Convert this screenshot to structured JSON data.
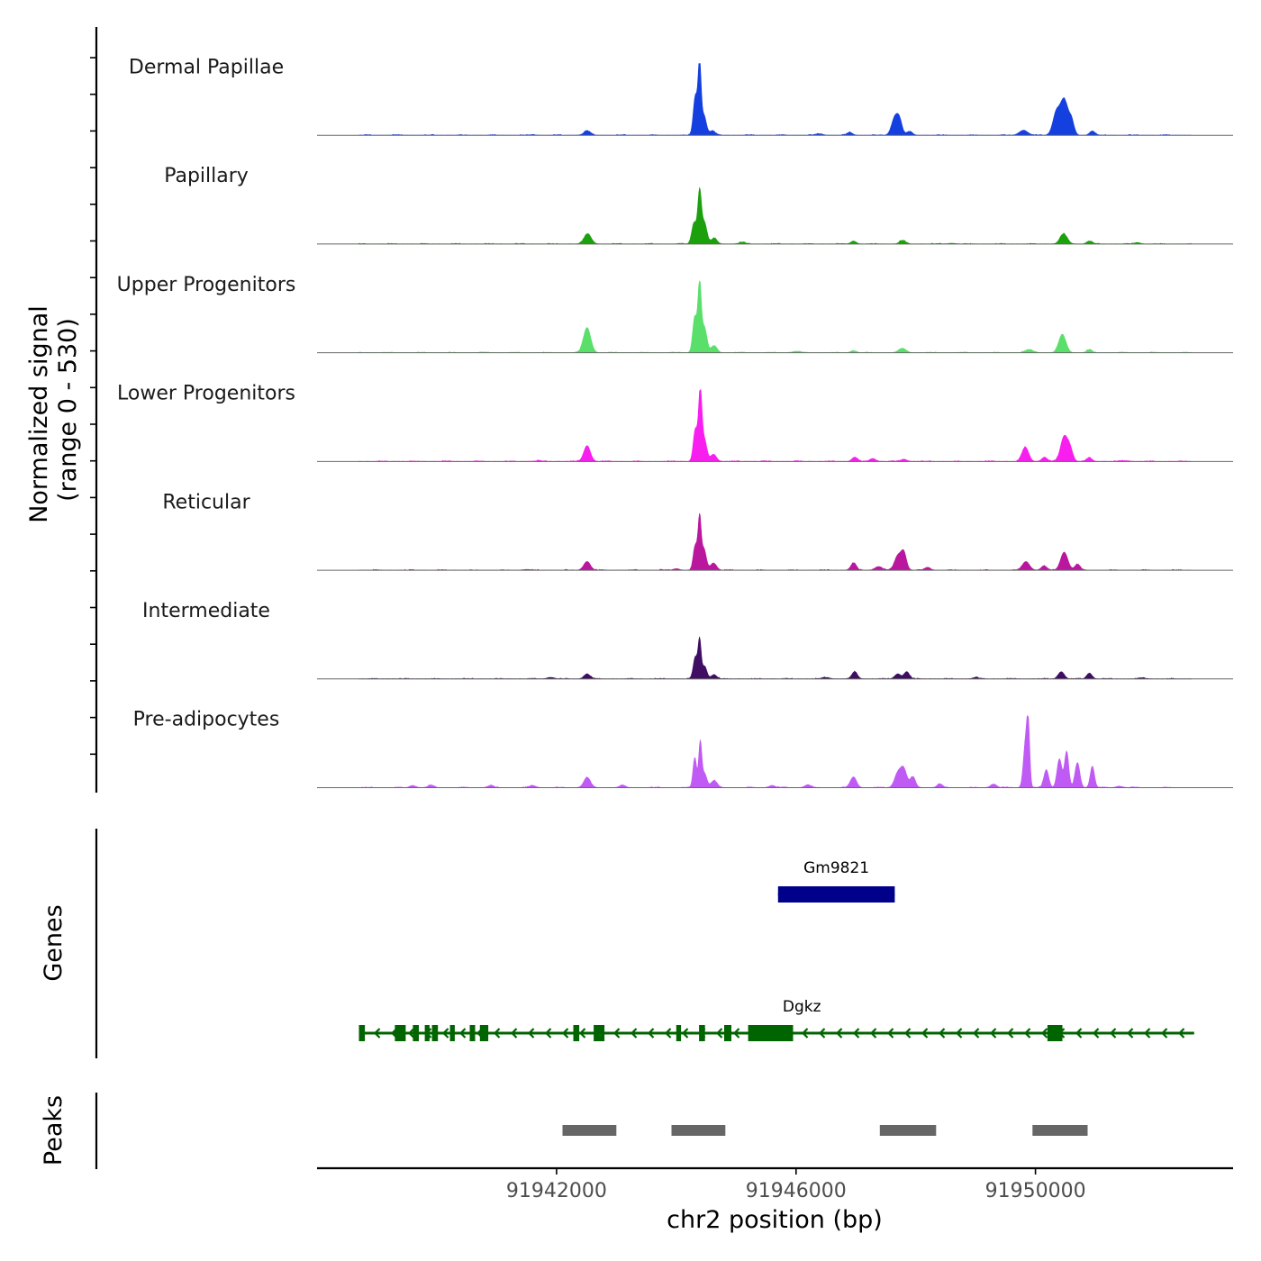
{
  "chart_data": {
    "type": "area",
    "title": "",
    "ylabel_line1": "Normalized signal",
    "ylabel_line2": "(range 0 - 530)",
    "ylim": [
      0,
      530
    ],
    "xlabel": "chr2 position (bp)",
    "xlim": [
      91938000,
      91953300
    ],
    "x_ticks": [
      {
        "value": 91942000,
        "label": "91942000"
      },
      {
        "value": 91946000,
        "label": "91946000"
      },
      {
        "value": 91950000,
        "label": "91950000"
      }
    ],
    "tracks": [
      {
        "name": "Dermal Papillae",
        "color": "#1540e0",
        "peaks": [
          [
            91942510,
            0.06,
            55
          ],
          [
            91944320,
            0.55,
            35
          ],
          [
            91944390,
            0.95,
            25
          ],
          [
            91944460,
            0.28,
            40
          ],
          [
            91944600,
            0.06,
            50
          ],
          [
            91947650,
            0.24,
            55
          ],
          [
            91947730,
            0.18,
            45
          ],
          [
            91947900,
            0.05,
            45
          ],
          [
            91949800,
            0.07,
            70
          ],
          [
            91950350,
            0.32,
            60
          ],
          [
            91950480,
            0.48,
            60
          ],
          [
            91950600,
            0.2,
            45
          ],
          [
            91950950,
            0.06,
            45
          ],
          [
            91941600,
            0.01,
            40
          ],
          [
            91946900,
            0.04,
            45
          ],
          [
            91946400,
            0.02,
            50
          ]
        ]
      },
      {
        "name": "Papillary",
        "color": "#1ca00e",
        "peaks": [
          [
            91942520,
            0.14,
            60
          ],
          [
            91944300,
            0.3,
            40
          ],
          [
            91944390,
            0.72,
            30
          ],
          [
            91944470,
            0.3,
            40
          ],
          [
            91944630,
            0.08,
            50
          ],
          [
            91946960,
            0.04,
            45
          ],
          [
            91947780,
            0.05,
            50
          ],
          [
            91950470,
            0.14,
            60
          ],
          [
            91950900,
            0.04,
            45
          ],
          [
            91945100,
            0.02,
            60
          ],
          [
            91948600,
            0.01,
            60
          ],
          [
            91951700,
            0.02,
            50
          ]
        ]
      },
      {
        "name": "Upper Progenitors",
        "color": "#59df6a",
        "peaks": [
          [
            91942510,
            0.35,
            60
          ],
          [
            91944310,
            0.5,
            35
          ],
          [
            91944390,
            0.95,
            28
          ],
          [
            91944470,
            0.35,
            40
          ],
          [
            91944630,
            0.1,
            50
          ],
          [
            91947780,
            0.06,
            60
          ],
          [
            91949900,
            0.04,
            70
          ],
          [
            91950450,
            0.25,
            60
          ],
          [
            91950900,
            0.04,
            45
          ],
          [
            91946960,
            0.03,
            45
          ],
          [
            91946000,
            0.02,
            60
          ]
        ]
      },
      {
        "name": "Lower Progenitors",
        "color": "#f81ef0",
        "peaks": [
          [
            91942510,
            0.22,
            55
          ],
          [
            91944320,
            0.45,
            35
          ],
          [
            91944400,
            0.95,
            28
          ],
          [
            91944470,
            0.3,
            40
          ],
          [
            91944620,
            0.1,
            50
          ],
          [
            91946980,
            0.06,
            45
          ],
          [
            91947280,
            0.04,
            50
          ],
          [
            91947800,
            0.03,
            50
          ],
          [
            91949830,
            0.2,
            55
          ],
          [
            91950150,
            0.06,
            45
          ],
          [
            91950480,
            0.35,
            60
          ],
          [
            91950580,
            0.15,
            45
          ],
          [
            91950900,
            0.05,
            45
          ],
          [
            91941700,
            0.01,
            60
          ],
          [
            91951500,
            0.01,
            60
          ]
        ]
      },
      {
        "name": "Reticular",
        "color": "#b9189e",
        "peaks": [
          [
            91942510,
            0.12,
            55
          ],
          [
            91944320,
            0.35,
            35
          ],
          [
            91944390,
            0.68,
            25
          ],
          [
            91944460,
            0.3,
            40
          ],
          [
            91944620,
            0.1,
            50
          ],
          [
            91946960,
            0.1,
            45
          ],
          [
            91947380,
            0.05,
            60
          ],
          [
            91947700,
            0.2,
            55
          ],
          [
            91947800,
            0.24,
            45
          ],
          [
            91948200,
            0.04,
            45
          ],
          [
            91949840,
            0.12,
            60
          ],
          [
            91950140,
            0.06,
            45
          ],
          [
            91950480,
            0.25,
            60
          ],
          [
            91950700,
            0.08,
            45
          ],
          [
            91941500,
            0.01,
            60
          ],
          [
            91944000,
            0.02,
            50
          ]
        ]
      },
      {
        "name": "Intermediate",
        "color": "#3f0d62",
        "peaks": [
          [
            91942510,
            0.07,
            50
          ],
          [
            91944320,
            0.3,
            35
          ],
          [
            91944390,
            0.52,
            25
          ],
          [
            91944470,
            0.18,
            40
          ],
          [
            91944630,
            0.06,
            45
          ],
          [
            91946980,
            0.1,
            45
          ],
          [
            91947700,
            0.07,
            50
          ],
          [
            91947850,
            0.1,
            45
          ],
          [
            91949000,
            0.02,
            50
          ],
          [
            91950430,
            0.1,
            50
          ],
          [
            91950900,
            0.08,
            45
          ],
          [
            91941900,
            0.02,
            60
          ],
          [
            91946500,
            0.02,
            60
          ],
          [
            91951800,
            0.01,
            60
          ]
        ]
      },
      {
        "name": "Pre-adipocytes",
        "color": "#c05af4",
        "peaks": [
          [
            91942510,
            0.14,
            55
          ],
          [
            91944310,
            0.42,
            30
          ],
          [
            91944400,
            0.62,
            25
          ],
          [
            91944470,
            0.2,
            40
          ],
          [
            91944630,
            0.1,
            50
          ],
          [
            91946960,
            0.15,
            50
          ],
          [
            91947700,
            0.2,
            55
          ],
          [
            91947800,
            0.25,
            50
          ],
          [
            91947950,
            0.15,
            45
          ],
          [
            91948400,
            0.05,
            45
          ],
          [
            91949830,
            0.6,
            35
          ],
          [
            91949880,
            0.8,
            25
          ],
          [
            91950180,
            0.25,
            40
          ],
          [
            91950400,
            0.4,
            40
          ],
          [
            91950520,
            0.5,
            35
          ],
          [
            91950700,
            0.35,
            40
          ],
          [
            91950950,
            0.3,
            35
          ],
          [
            91939600,
            0.03,
            50
          ],
          [
            91939900,
            0.03,
            50
          ],
          [
            91940900,
            0.03,
            50
          ],
          [
            91941600,
            0.03,
            50
          ],
          [
            91943100,
            0.03,
            50
          ],
          [
            91945600,
            0.03,
            50
          ],
          [
            91946200,
            0.04,
            50
          ],
          [
            91949300,
            0.05,
            50
          ],
          [
            91951400,
            0.02,
            50
          ]
        ]
      }
    ],
    "genes_label": "Genes",
    "genes": [
      {
        "name": "Gm9821",
        "color": "#00008b",
        "strand": "+",
        "start": 91945700,
        "end": 91947650,
        "exons": [
          [
            91945700,
            91947650
          ]
        ]
      },
      {
        "name": "Dgkz",
        "color": "#006400",
        "strand": "-",
        "start": 91938700,
        "end": 91952650,
        "exons": [
          [
            91938700,
            91938800
          ],
          [
            91939300,
            91939480
          ],
          [
            91939600,
            91939700
          ],
          [
            91939800,
            91939880
          ],
          [
            91939920,
            91940020
          ],
          [
            91940220,
            91940300
          ],
          [
            91940550,
            91940640
          ],
          [
            91940720,
            91940860
          ],
          [
            91942280,
            91942380
          ],
          [
            91942620,
            91942800
          ],
          [
            91944000,
            91944080
          ],
          [
            91944380,
            91944480
          ],
          [
            91944800,
            91944920
          ],
          [
            91945200,
            91945950
          ],
          [
            91950200,
            91950450
          ]
        ]
      }
    ],
    "peaks_label": "Peaks",
    "peak_color": "#666666",
    "peak_regions": [
      [
        91942100,
        91943000
      ],
      [
        91943920,
        91944820
      ],
      [
        91947400,
        91948340
      ],
      [
        91949950,
        91950870
      ]
    ]
  }
}
